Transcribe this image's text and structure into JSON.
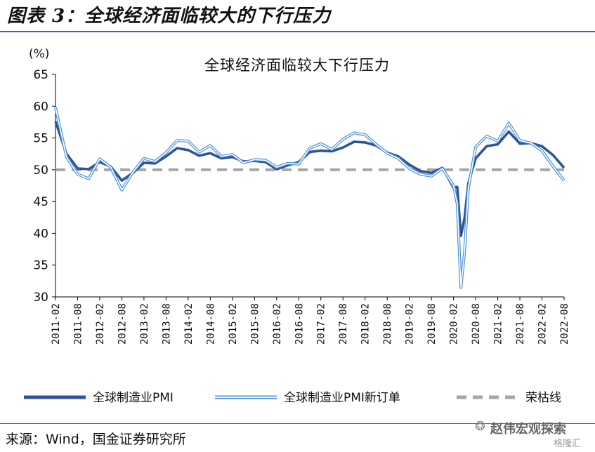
{
  "figure_title": "图表 3：全球经济面临较大的下行压力",
  "source": "来源：Wind，国金证券研究所",
  "watermark": {
    "name": "赵伟宏观探索",
    "sub": "格隆汇"
  },
  "colors": {
    "pmi": "#2e5597",
    "new_orders": "#4a90d9",
    "threshold": "#a6a6a6",
    "rule": "#2f66b8"
  },
  "chart_data": {
    "type": "line",
    "title": "全球经济面临较大下行压力",
    "ylabel": "(%)",
    "ylim": [
      30,
      65
    ],
    "yticks": [
      30,
      35,
      40,
      45,
      50,
      55,
      60,
      65
    ],
    "xlim": [
      "2011-02",
      "2022-08"
    ],
    "xticks": [
      "2011-02",
      "2011-08",
      "2012-02",
      "2012-08",
      "2013-02",
      "2013-08",
      "2014-02",
      "2014-08",
      "2015-02",
      "2015-08",
      "2016-02",
      "2016-08",
      "2017-02",
      "2017-08",
      "2018-02",
      "2018-08",
      "2019-02",
      "2019-08",
      "2020-02",
      "2020-08",
      "2021-02",
      "2021-08",
      "2022-02",
      "2022-08"
    ],
    "grid": false,
    "legend_position": "bottom",
    "series": [
      {
        "name": "全球制造业PMI",
        "style": "thick-dark",
        "x": [
          "2011-02",
          "2011-05",
          "2011-08",
          "2011-11",
          "2012-02",
          "2012-05",
          "2012-08",
          "2012-11",
          "2013-02",
          "2013-05",
          "2013-08",
          "2013-11",
          "2014-02",
          "2014-05",
          "2014-08",
          "2014-11",
          "2015-02",
          "2015-05",
          "2015-08",
          "2015-11",
          "2016-02",
          "2016-05",
          "2016-08",
          "2016-11",
          "2017-02",
          "2017-05",
          "2017-08",
          "2017-11",
          "2018-02",
          "2018-05",
          "2018-08",
          "2018-11",
          "2019-02",
          "2019-05",
          "2019-08",
          "2019-11",
          "2020-02",
          "2020-03",
          "2020-04",
          "2020-05",
          "2020-06",
          "2020-08",
          "2020-11",
          "2021-02",
          "2021-05",
          "2021-08",
          "2021-11",
          "2022-02",
          "2022-05",
          "2022-08"
        ],
        "values": [
          57.6,
          52.5,
          50.2,
          50.1,
          51.2,
          50.5,
          48.3,
          49.5,
          51.1,
          51.0,
          52.1,
          53.4,
          53.1,
          52.2,
          52.6,
          51.8,
          52.0,
          51.3,
          51.4,
          51.2,
          50.1,
          50.7,
          51.2,
          52.8,
          53.0,
          52.9,
          53.5,
          54.4,
          54.3,
          53.8,
          52.7,
          52.1,
          50.8,
          49.8,
          49.5,
          50.3,
          47.2,
          47.3,
          39.6,
          42.4,
          47.8,
          51.8,
          53.7,
          54.0,
          56.0,
          54.1,
          54.2,
          53.7,
          52.3,
          50.3
        ]
      },
      {
        "name": "全球制造业PMI新订单",
        "style": "double-light",
        "x": [
          "2011-02",
          "2011-05",
          "2011-08",
          "2011-11",
          "2012-02",
          "2012-05",
          "2012-08",
          "2012-11",
          "2013-02",
          "2013-05",
          "2013-08",
          "2013-11",
          "2014-02",
          "2014-05",
          "2014-08",
          "2014-11",
          "2015-02",
          "2015-05",
          "2015-08",
          "2015-11",
          "2016-02",
          "2016-05",
          "2016-08",
          "2016-11",
          "2017-02",
          "2017-05",
          "2017-08",
          "2017-11",
          "2018-02",
          "2018-05",
          "2018-08",
          "2018-11",
          "2019-02",
          "2019-05",
          "2019-08",
          "2019-11",
          "2020-02",
          "2020-03",
          "2020-04",
          "2020-05",
          "2020-06",
          "2020-08",
          "2020-11",
          "2021-02",
          "2021-05",
          "2021-08",
          "2021-11",
          "2022-02",
          "2022-05",
          "2022-08"
        ],
        "values": [
          59.8,
          52.0,
          49.3,
          48.6,
          51.7,
          50.4,
          46.8,
          49.6,
          51.8,
          51.3,
          52.7,
          54.6,
          54.5,
          52.8,
          53.8,
          52.1,
          52.4,
          51.1,
          51.6,
          51.5,
          50.4,
          51.0,
          50.9,
          53.4,
          54.1,
          53.2,
          54.8,
          55.8,
          55.5,
          54.0,
          52.6,
          51.8,
          50.2,
          49.3,
          49.0,
          50.2,
          47.5,
          44.6,
          31.5,
          37.0,
          47.0,
          53.6,
          55.3,
          54.5,
          57.3,
          54.6,
          54.2,
          53.0,
          50.5,
          48.3
        ]
      },
      {
        "name": "荣枯线",
        "style": "dashed-gray",
        "x": [
          "2011-02",
          "2022-08"
        ],
        "values": [
          50,
          50
        ]
      }
    ]
  }
}
